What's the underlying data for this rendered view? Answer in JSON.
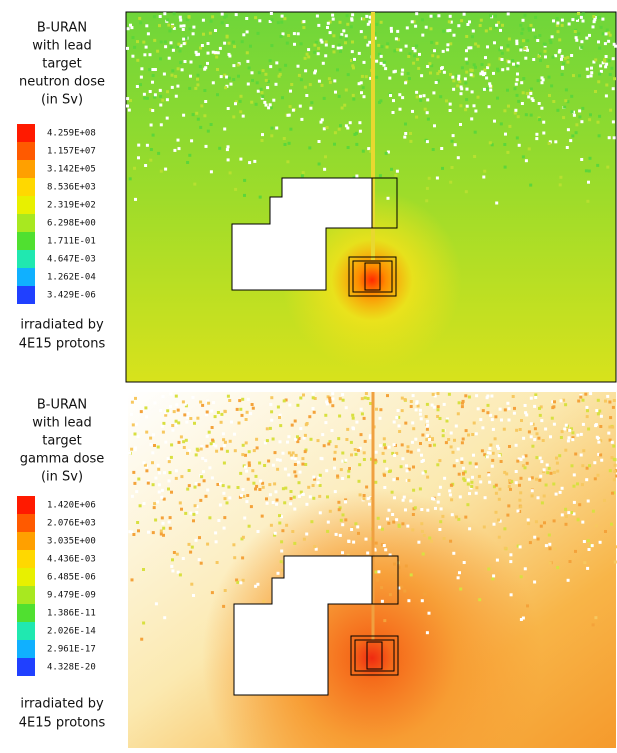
{
  "panels": [
    {
      "title": [
        "B-URAN",
        "with lead",
        "target",
        "neutron dose",
        "(in Sv)"
      ],
      "legend": [
        "4.259E+08",
        "1.157E+07",
        "3.142E+05",
        "8.536E+03",
        "2.319E+02",
        "6.298E+00",
        "1.711E-01",
        "4.647E-03",
        "1.262E-04",
        "3.429E-06"
      ],
      "footer": [
        "irradiated by",
        "4E15 protons"
      ]
    },
    {
      "title": [
        "B-URAN",
        "with lead",
        "target",
        "gamma dose",
        "(in Sv)"
      ],
      "legend": [
        "1.420E+06",
        "2.076E+03",
        "3.035E+00",
        "4.436E-03",
        "6.485E-06",
        "9.479E-09",
        "1.386E-11",
        "2.026E-14",
        "2.961E-17",
        "4.328E-20"
      ],
      "footer": [
        "irradiated by",
        "4E15 protons"
      ]
    }
  ]
}
